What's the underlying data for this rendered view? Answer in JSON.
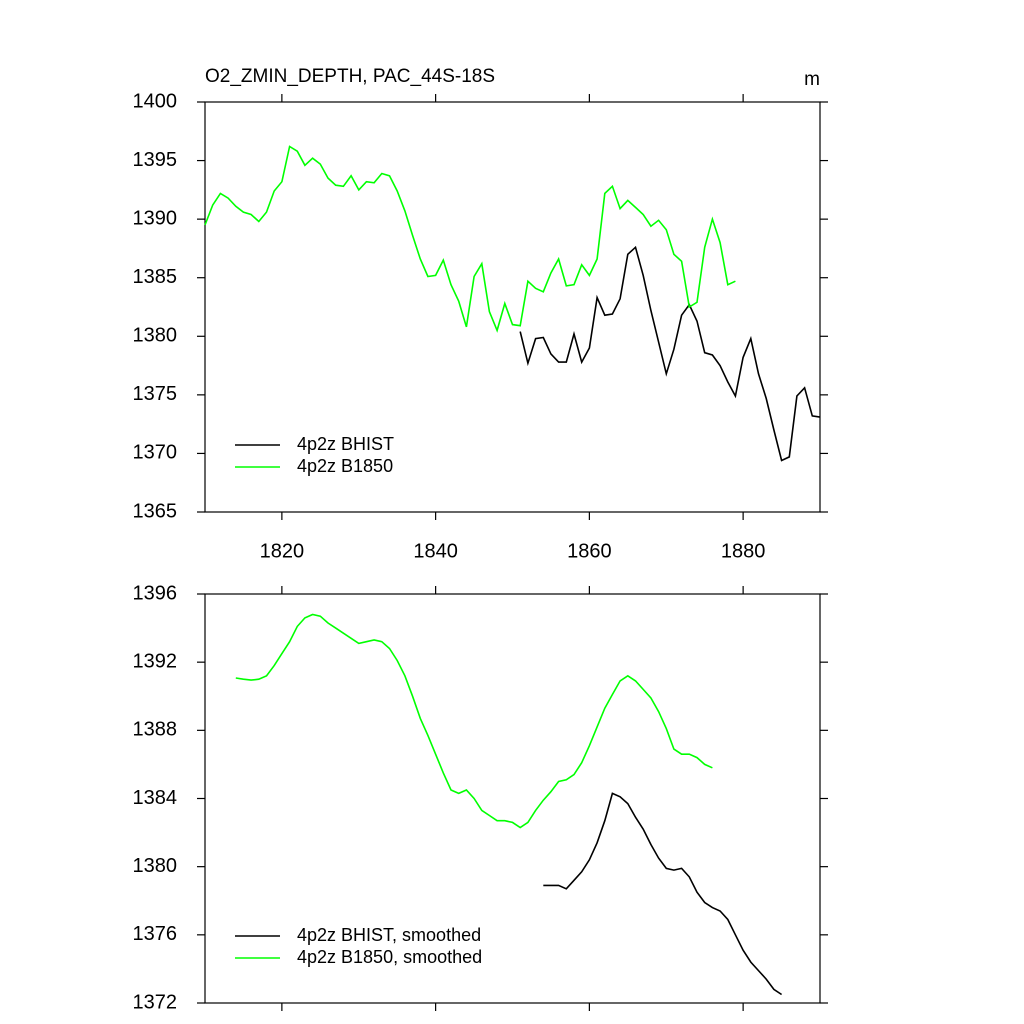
{
  "chart_data": [
    {
      "type": "line",
      "title": "O2_ZMIN_DEPTH, PAC_44S-18S",
      "units": "m",
      "xlim": [
        1810,
        1890
      ],
      "xticks": [
        1820,
        1840,
        1860,
        1880
      ],
      "show_xtick_labels": true,
      "ylim": [
        1365,
        1400
      ],
      "yticks": [
        1365,
        1370,
        1375,
        1380,
        1385,
        1390,
        1395,
        1400
      ],
      "legend": "bottom-left",
      "series": [
        {
          "name": "4p2z BHIST",
          "color": "#000000",
          "x": [
            1851,
            1852,
            1853,
            1854,
            1855,
            1856,
            1857,
            1858,
            1859,
            1860,
            1861,
            1862,
            1863,
            1864,
            1865,
            1866,
            1867,
            1868,
            1869,
            1870,
            1871,
            1872,
            1873,
            1874,
            1875,
            1876,
            1877,
            1878,
            1879,
            1880,
            1881,
            1882,
            1883,
            1884,
            1885,
            1886,
            1887,
            1888,
            1889,
            1890
          ],
          "values": [
            1380.4,
            1377.7,
            1379.8,
            1379.9,
            1378.5,
            1377.8,
            1377.8,
            1380.2,
            1377.8,
            1379.0,
            1383.3,
            1381.8,
            1381.9,
            1383.2,
            1387.0,
            1387.6,
            1385.2,
            1382.2,
            1379.5,
            1376.8,
            1378.9,
            1381.8,
            1382.7,
            1381.3,
            1378.6,
            1378.4,
            1377.5,
            1376.1,
            1374.9,
            1378.2,
            1379.8,
            1376.8,
            1374.7,
            1372.0,
            1369.4,
            1369.7,
            1374.9,
            1375.6,
            1373.2,
            1373.1
          ]
        },
        {
          "name": "4p2z B1850",
          "color": "#00ff00",
          "x": [
            1810,
            1811,
            1812,
            1813,
            1814,
            1815,
            1816,
            1817,
            1818,
            1819,
            1820,
            1821,
            1822,
            1823,
            1824,
            1825,
            1826,
            1827,
            1828,
            1829,
            1830,
            1831,
            1832,
            1833,
            1834,
            1835,
            1836,
            1837,
            1838,
            1839,
            1840,
            1841,
            1842,
            1843,
            1844,
            1845,
            1846,
            1847,
            1848,
            1849,
            1850,
            1851,
            1852,
            1853,
            1854,
            1855,
            1856,
            1857,
            1858,
            1859,
            1860,
            1861,
            1862,
            1863,
            1864,
            1865,
            1866,
            1867,
            1868,
            1869,
            1870,
            1871,
            1872,
            1873,
            1874,
            1875,
            1876,
            1877,
            1878,
            1879
          ],
          "values": [
            1389.5,
            1391.2,
            1392.2,
            1391.8,
            1391.1,
            1390.6,
            1390.4,
            1389.8,
            1390.6,
            1392.4,
            1393.2,
            1396.2,
            1395.8,
            1394.6,
            1395.2,
            1394.7,
            1393.5,
            1392.9,
            1392.8,
            1393.7,
            1392.5,
            1393.2,
            1393.1,
            1393.9,
            1393.7,
            1392.4,
            1390.7,
            1388.6,
            1386.6,
            1385.1,
            1385.2,
            1386.5,
            1384.4,
            1383.0,
            1380.8,
            1385.1,
            1386.2,
            1382.1,
            1380.5,
            1382.8,
            1381.0,
            1380.9,
            1384.7,
            1384.1,
            1383.8,
            1385.4,
            1386.6,
            1384.3,
            1384.4,
            1386.1,
            1385.2,
            1386.6,
            1392.2,
            1392.8,
            1390.9,
            1391.6,
            1391.0,
            1390.4,
            1389.4,
            1389.9,
            1389.1,
            1387.0,
            1386.4,
            1382.5,
            1382.9,
            1387.6,
            1390.0,
            1388.0,
            1384.4,
            1384.7
          ]
        }
      ]
    },
    {
      "type": "line",
      "xlim": [
        1810,
        1890
      ],
      "xticks": [
        1820,
        1840,
        1860,
        1880
      ],
      "show_xtick_labels": false,
      "ylim": [
        1372,
        1396
      ],
      "yticks": [
        1372,
        1376,
        1380,
        1384,
        1388,
        1392,
        1396
      ],
      "legend": "bottom-left",
      "series": [
        {
          "name": "4p2z BHIST, smoothed",
          "color": "#000000",
          "x": [
            1854,
            1855,
            1856,
            1857,
            1858,
            1859,
            1860,
            1861,
            1862,
            1863,
            1864,
            1865,
            1866,
            1867,
            1868,
            1869,
            1870,
            1871,
            1872,
            1873,
            1874,
            1875,
            1876,
            1877,
            1878,
            1879,
            1880,
            1881,
            1882,
            1883,
            1884,
            1885
          ],
          "values": [
            1378.9,
            1378.9,
            1378.9,
            1378.7,
            1379.2,
            1379.7,
            1380.4,
            1381.4,
            1382.7,
            1384.3,
            1384.1,
            1383.7,
            1382.9,
            1382.2,
            1381.3,
            1380.5,
            1379.9,
            1379.8,
            1379.9,
            1379.4,
            1378.5,
            1377.9,
            1377.6,
            1377.4,
            1376.9,
            1376.0,
            1375.1,
            1374.4,
            1373.9,
            1373.4,
            1372.8,
            1372.5
          ]
        },
        {
          "name": "4p2z B1850, smoothed",
          "color": "#00ff00",
          "x": [
            1814,
            1815,
            1816,
            1817,
            1818,
            1819,
            1820,
            1821,
            1822,
            1823,
            1824,
            1825,
            1826,
            1827,
            1828,
            1829,
            1830,
            1831,
            1832,
            1833,
            1834,
            1835,
            1836,
            1837,
            1838,
            1839,
            1840,
            1841,
            1842,
            1843,
            1844,
            1845,
            1846,
            1847,
            1848,
            1849,
            1850,
            1851,
            1852,
            1853,
            1854,
            1855,
            1856,
            1857,
            1858,
            1859,
            1860,
            1861,
            1862,
            1863,
            1864,
            1865,
            1866,
            1867,
            1868,
            1869,
            1870,
            1871,
            1872,
            1873,
            1874,
            1875,
            1876
          ],
          "values": [
            1391.07,
            1391.0,
            1390.95,
            1391.0,
            1391.2,
            1391.8,
            1392.5,
            1393.2,
            1394.1,
            1394.6,
            1394.8,
            1394.7,
            1394.3,
            1394.0,
            1393.7,
            1393.4,
            1393.1,
            1393.2,
            1393.3,
            1393.2,
            1392.8,
            1392.1,
            1391.2,
            1390.0,
            1388.7,
            1387.7,
            1386.6,
            1385.5,
            1384.5,
            1384.3,
            1384.5,
            1384.0,
            1383.3,
            1383.0,
            1382.7,
            1382.7,
            1382.6,
            1382.3,
            1382.6,
            1383.3,
            1383.9,
            1384.4,
            1385.0,
            1385.1,
            1385.4,
            1386.1,
            1387.1,
            1388.2,
            1389.3,
            1390.1,
            1390.9,
            1391.2,
            1390.9,
            1390.4,
            1389.9,
            1389.1,
            1388.1,
            1386.9,
            1386.6,
            1386.6,
            1386.4,
            1386.0,
            1385.8
          ]
        }
      ]
    }
  ]
}
